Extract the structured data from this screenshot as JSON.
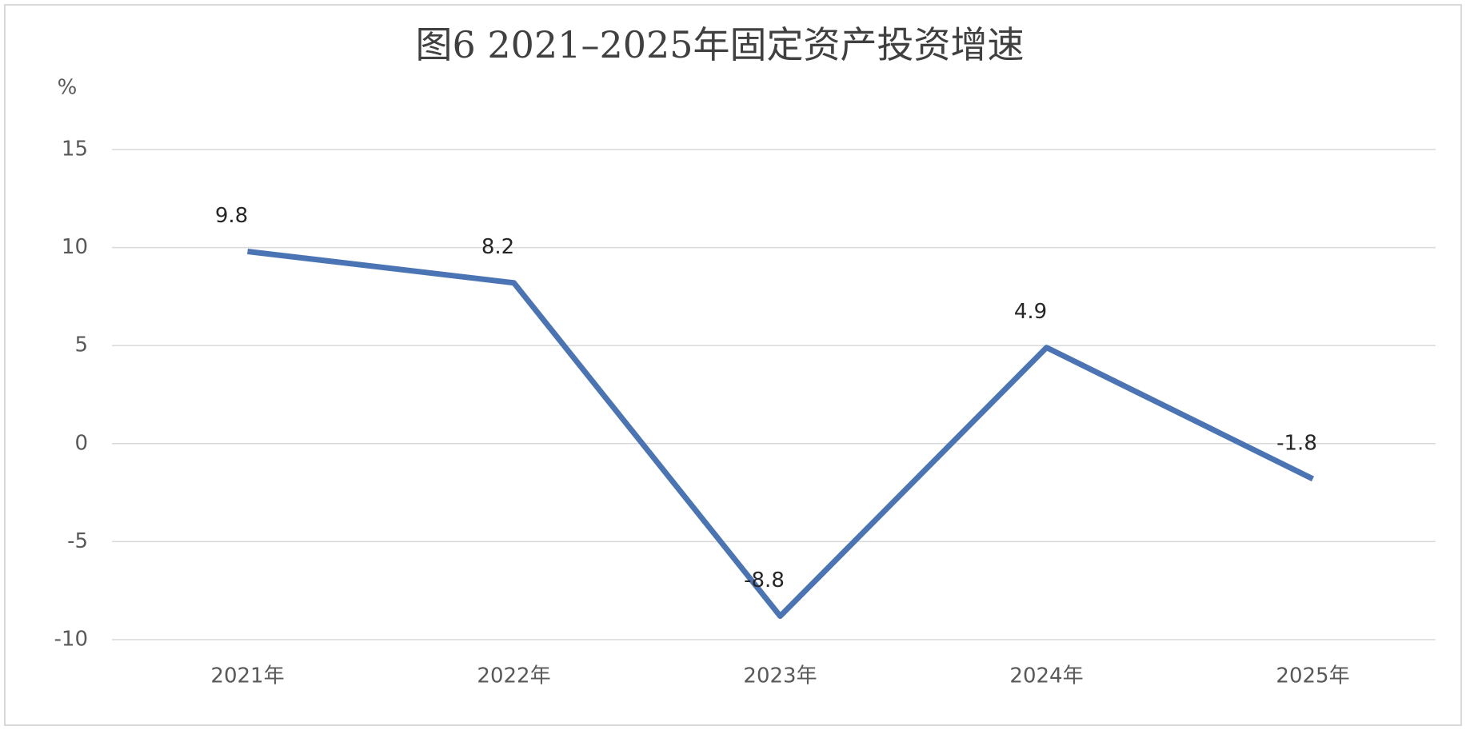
{
  "chart_data": {
    "type": "line",
    "title": "图6 2021–2025年固定资产投资增速",
    "y_label": "%",
    "categories": [
      "2021年",
      "2022年",
      "2023年",
      "2024年",
      "2025年"
    ],
    "values": [
      9.8,
      8.2,
      -8.8,
      4.9,
      -1.8
    ],
    "color": "#4a74b4",
    "ylim": [
      -10,
      15
    ],
    "yticks": [
      -10,
      -5,
      0,
      5,
      10,
      15
    ],
    "grid": true
  }
}
